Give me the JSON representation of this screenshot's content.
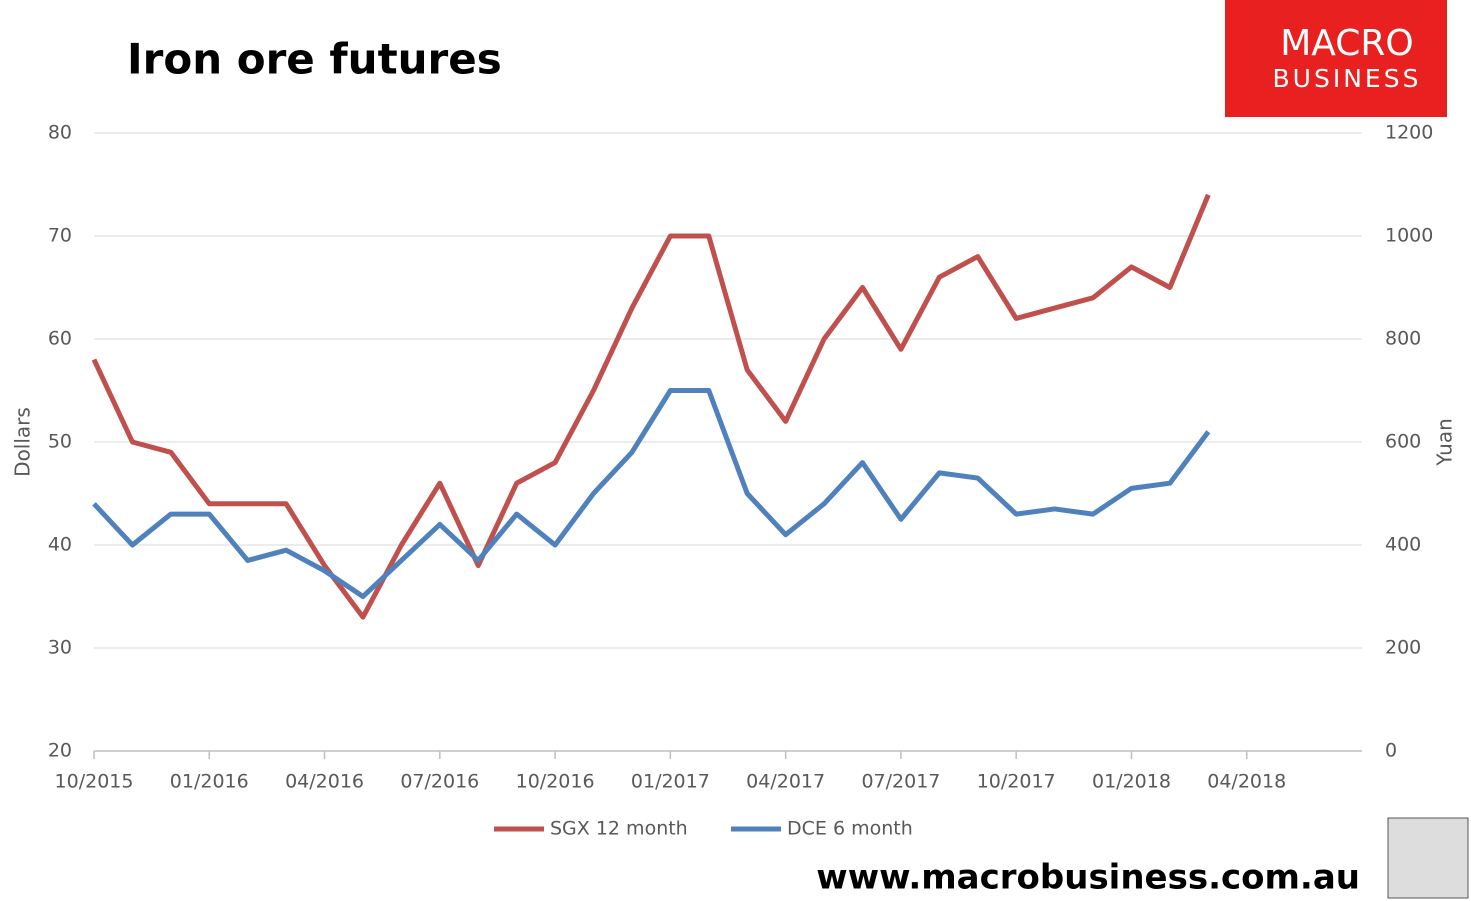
{
  "chart_data": {
    "type": "line",
    "title": "Iron ore futures",
    "logo": [
      "MACRO",
      "BUSINESS"
    ],
    "footer": "www.macrobusiness.com.au",
    "ylabel": "Dollars",
    "y2label": "Yuan",
    "x": [
      "10/2015",
      "11/2015",
      "12/2015",
      "01/2016",
      "02/2016",
      "03/2016",
      "04/2016",
      "05/2016",
      "06/2016",
      "07/2016",
      "08/2016",
      "09/2016",
      "10/2016",
      "11/2016",
      "12/2016",
      "01/2017",
      "02/2017",
      "03/2017",
      "04/2017",
      "05/2017",
      "06/2017",
      "07/2017",
      "08/2017",
      "09/2017",
      "10/2017",
      "11/2017",
      "12/2017",
      "01/2018",
      "02/2018",
      "03/2018"
    ],
    "xlim": [
      "10/2015",
      "07/2018"
    ],
    "xticks": [
      "10/2015",
      "01/2016",
      "04/2016",
      "07/2016",
      "10/2016",
      "01/2017",
      "04/2017",
      "07/2017",
      "10/2017",
      "01/2018",
      "04/2018"
    ],
    "ylim": [
      20,
      80
    ],
    "yticks": [
      20,
      30,
      40,
      50,
      60,
      70,
      80
    ],
    "y2lim": [
      0,
      1200
    ],
    "y2ticks": [
      0,
      200,
      400,
      600,
      800,
      1000,
      1200
    ],
    "grid": true,
    "legend": "bottom",
    "series": [
      {
        "name": "SGX 12 month",
        "color": "#c0504d",
        "values": [
          58,
          50,
          49,
          44,
          44,
          44,
          38,
          33,
          40,
          46,
          38,
          46,
          48,
          55,
          63,
          70,
          70,
          57,
          52,
          60,
          65,
          59,
          66,
          68,
          62,
          63,
          64,
          67,
          65,
          74
        ]
      },
      {
        "name": "DCE 6 month",
        "color": "#4f81bd",
        "axis": "y2",
        "values": [
          480,
          400,
          460,
          460,
          370,
          390,
          350,
          300,
          370,
          440,
          370,
          460,
          400,
          500,
          580,
          700,
          700,
          500,
          420,
          480,
          560,
          450,
          540,
          530,
          460,
          470,
          460,
          510,
          520,
          620
        ]
      }
    ]
  }
}
